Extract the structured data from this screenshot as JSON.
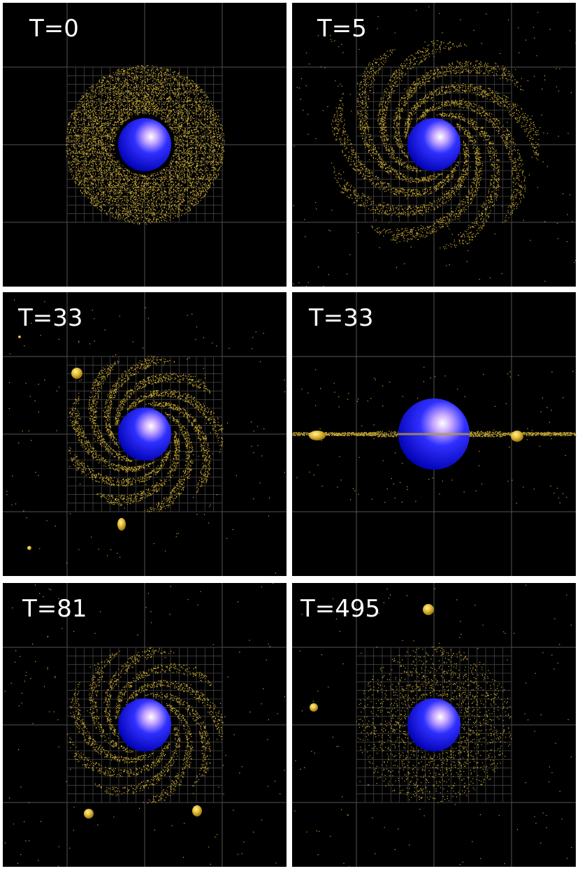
{
  "panels": [
    {
      "label": "T=0"
    },
    {
      "label": "T=5"
    },
    {
      "label": "T=33"
    },
    {
      "label": "T=33"
    },
    {
      "label": "T=81"
    },
    {
      "label": "T=495"
    }
  ]
}
